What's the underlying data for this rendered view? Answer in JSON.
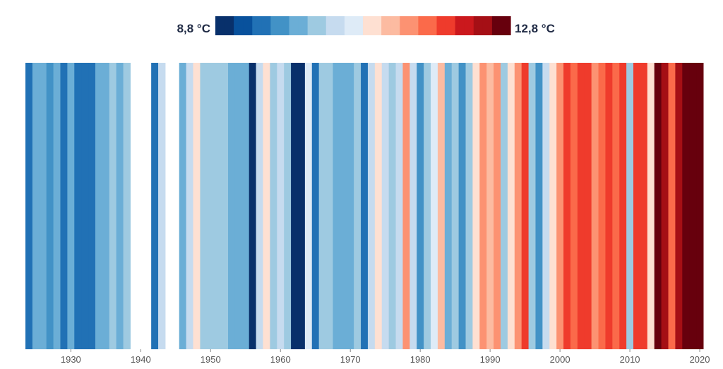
{
  "chart_data": {
    "type": "heatmap",
    "title": "",
    "legend": {
      "min_label": "8,8 °C",
      "max_label": "12,8 °C",
      "min": 8.8,
      "max": 12.8,
      "position": "top-center"
    },
    "palette": [
      "#08306b",
      "#08519c",
      "#2171b5",
      "#4292c6",
      "#6baed6",
      "#9ecae1",
      "#c6dbef",
      "#deebf7",
      "#fee0d2",
      "#fcbba1",
      "#fc9272",
      "#fb6a4a",
      "#ef3b2c",
      "#cb181d",
      "#a50f15",
      "#67000d"
    ],
    "x_start_year": 1924,
    "x_end_year": 2020,
    "x_ticks": [
      1930,
      1940,
      1950,
      1960,
      1970,
      1980,
      1990,
      2000,
      2010,
      2020
    ],
    "x_tick_labels": [
      "1930",
      "1940",
      "1950",
      "1960",
      "1970",
      "1980",
      "1990",
      "2000",
      "2010",
      "2020"
    ],
    "years": [
      1924,
      1925,
      1926,
      1927,
      1928,
      1929,
      1930,
      1931,
      1932,
      1933,
      1934,
      1935,
      1936,
      1937,
      1938,
      1939,
      1940,
      1941,
      1942,
      1943,
      1944,
      1945,
      1946,
      1947,
      1948,
      1949,
      1950,
      1951,
      1952,
      1953,
      1954,
      1955,
      1956,
      1957,
      1958,
      1959,
      1960,
      1961,
      1962,
      1963,
      1964,
      1965,
      1966,
      1967,
      1968,
      1969,
      1970,
      1971,
      1972,
      1973,
      1974,
      1975,
      1976,
      1977,
      1978,
      1979,
      1980,
      1981,
      1982,
      1983,
      1984,
      1985,
      1986,
      1987,
      1988,
      1989,
      1990,
      1991,
      1992,
      1993,
      1994,
      1995,
      1996,
      1997,
      1998,
      1999,
      2000,
      2001,
      2002,
      2003,
      2004,
      2005,
      2006,
      2007,
      2008,
      2009,
      2010,
      2011,
      2012,
      2013,
      2014,
      2015,
      2016,
      2017,
      2018,
      2019,
      2020
    ],
    "values": [
      9.5,
      9.9,
      9.9,
      9.7,
      9.9,
      9.3,
      9.9,
      9.3,
      9.5,
      9.5,
      9.9,
      9.9,
      10.2,
      9.9,
      10.2,
      null,
      null,
      null,
      9.3,
      10.5,
      null,
      null,
      10.0,
      10.5,
      10.8,
      10.2,
      10.2,
      10.2,
      10.2,
      10.0,
      9.8,
      10.0,
      9.0,
      10.5,
      11.0,
      10.2,
      10.5,
      10.2,
      8.8,
      9.0,
      10.7,
      9.5,
      10.2,
      10.2,
      10.0,
      9.8,
      9.8,
      10.2,
      9.5,
      10.5,
      11.0,
      10.4,
      10.2,
      10.5,
      11.3,
      10.3,
      9.6,
      10.2,
      10.7,
      11.2,
      9.9,
      10.1,
      9.7,
      10.1,
      10.8,
      11.3,
      11.1,
      11.3,
      10.2,
      11.0,
      11.4,
      12.0,
      10.2,
      9.7,
      10.5,
      11.0,
      11.3,
      12.0,
      11.6,
      11.8,
      11.8,
      11.3,
      11.7,
      11.8,
      11.7,
      11.8,
      10.2,
      11.8,
      11.8,
      10.9,
      12.6,
      12.5,
      11.6,
      12.4,
      12.7,
      12.6,
      12.7
    ]
  }
}
